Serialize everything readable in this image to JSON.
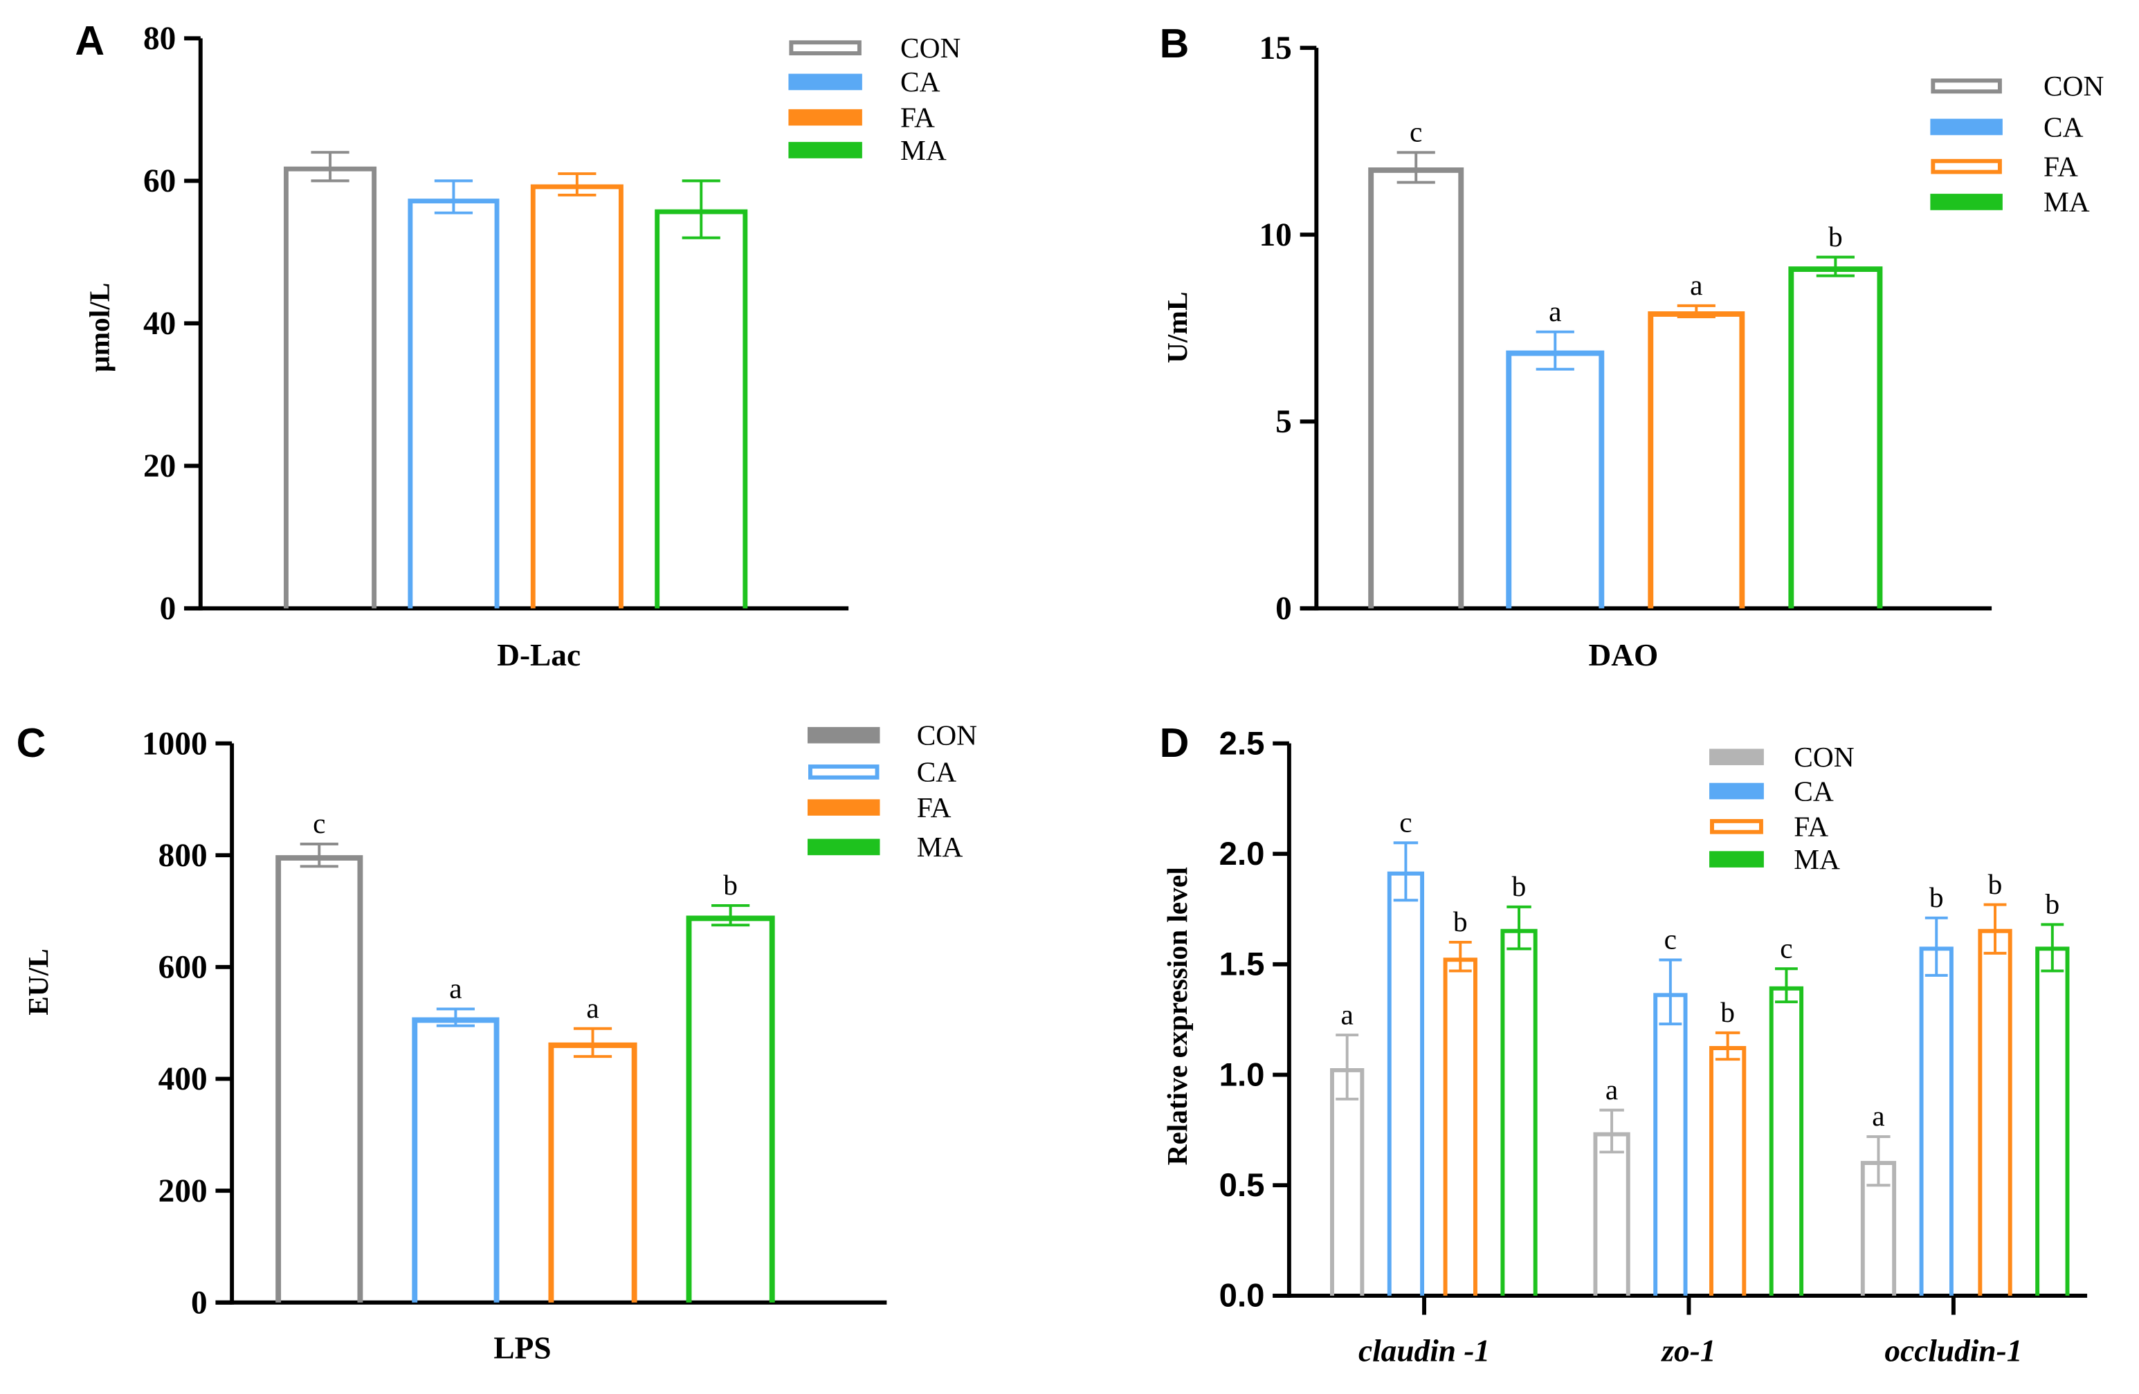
{
  "colors": {
    "CON": "#8c8c8c",
    "CON_light": "#b4b4b4",
    "CA": "#5aa9f5",
    "FA": "#ff8a1a",
    "MA": "#1ec21e",
    "axis": "#000000"
  },
  "chart_data": [
    {
      "panel": "A",
      "type": "bar",
      "title": "D-Lac",
      "xlabel": "D-Lac",
      "ylabel": "μmol/L",
      "ylim": [
        0,
        80
      ],
      "yticks": [
        "0",
        "20",
        "40",
        "60",
        "80"
      ],
      "ytick_values": [
        0,
        20,
        40,
        60,
        80
      ],
      "legend": [
        "CON",
        "CA",
        "FA",
        "MA"
      ],
      "legend_position": "top-right",
      "categories": [
        "D-Lac"
      ],
      "series": [
        {
          "name": "CON",
          "values": [
            62
          ],
          "err_low": [
            60
          ],
          "err_high": [
            64
          ],
          "letters": [
            ""
          ]
        },
        {
          "name": "CA",
          "values": [
            57.5
          ],
          "err_low": [
            55.5
          ],
          "err_high": [
            60
          ],
          "letters": [
            ""
          ]
        },
        {
          "name": "FA",
          "values": [
            59.5
          ],
          "err_low": [
            58
          ],
          "err_high": [
            61
          ],
          "letters": [
            ""
          ]
        },
        {
          "name": "MA",
          "values": [
            56
          ],
          "err_low": [
            52
          ],
          "err_high": [
            60
          ],
          "letters": [
            ""
          ]
        }
      ]
    },
    {
      "panel": "B",
      "type": "bar",
      "title": "DAO",
      "xlabel": "DAO",
      "ylabel": "U/mL",
      "ylim": [
        0,
        15
      ],
      "yticks": [
        "0",
        "5",
        "10",
        "15"
      ],
      "ytick_values": [
        0,
        5,
        10,
        15
      ],
      "legend": [
        "CON",
        "CA",
        "FA",
        "MA"
      ],
      "legend_position": "top-right",
      "categories": [
        "DAO"
      ],
      "series": [
        {
          "name": "CON",
          "values": [
            11.8
          ],
          "err_low": [
            11.4
          ],
          "err_high": [
            12.2
          ],
          "letters": [
            "c"
          ]
        },
        {
          "name": "CA",
          "values": [
            6.9
          ],
          "err_low": [
            6.4
          ],
          "err_high": [
            7.4
          ],
          "letters": [
            "a"
          ]
        },
        {
          "name": "FA",
          "values": [
            7.95
          ],
          "err_low": [
            7.8
          ],
          "err_high": [
            8.1
          ],
          "letters": [
            "a"
          ]
        },
        {
          "name": "MA",
          "values": [
            9.15
          ],
          "err_low": [
            8.9
          ],
          "err_high": [
            9.4
          ],
          "letters": [
            "b"
          ]
        }
      ]
    },
    {
      "panel": "C",
      "type": "bar",
      "title": "LPS",
      "xlabel": "LPS",
      "ylabel": "EU/L",
      "ylim": [
        0,
        1000
      ],
      "yticks": [
        "0",
        "200",
        "400",
        "600",
        "800",
        "1000"
      ],
      "ytick_values": [
        0,
        200,
        400,
        600,
        800,
        1000
      ],
      "legend": [
        "CON",
        "CA",
        "FA",
        "MA"
      ],
      "legend_position": "top-right",
      "categories": [
        "LPS"
      ],
      "series": [
        {
          "name": "CON",
          "values": [
            800
          ],
          "err_low": [
            780
          ],
          "err_high": [
            820
          ],
          "letters": [
            "c"
          ]
        },
        {
          "name": "CA",
          "values": [
            510
          ],
          "err_low": [
            495
          ],
          "err_high": [
            525
          ],
          "letters": [
            "a"
          ]
        },
        {
          "name": "FA",
          "values": [
            465
          ],
          "err_low": [
            440
          ],
          "err_high": [
            490
          ],
          "letters": [
            "a"
          ]
        },
        {
          "name": "MA",
          "values": [
            692
          ],
          "err_low": [
            675
          ],
          "err_high": [
            710
          ],
          "letters": [
            "b"
          ]
        }
      ]
    },
    {
      "panel": "D",
      "type": "bar",
      "title": "",
      "xlabel": "",
      "ylabel": "Relative expression level",
      "ylim": [
        0,
        2.5
      ],
      "yticks": [
        "0.0",
        "0.5",
        "1.0",
        "1.5",
        "2.0",
        "2.5"
      ],
      "ytick_values": [
        0,
        0.5,
        1.0,
        1.5,
        2.0,
        2.5
      ],
      "legend": [
        "CON",
        "CA",
        "FA",
        "MA"
      ],
      "legend_position": "top-center",
      "categories": [
        "claudin -1",
        "zo-1",
        "occludin-1"
      ],
      "series": [
        {
          "name": "CON",
          "values": [
            1.03,
            0.74,
            0.61
          ],
          "err_low": [
            0.89,
            0.65,
            0.5
          ],
          "err_high": [
            1.18,
            0.84,
            0.72
          ],
          "letters": [
            "a",
            "a",
            "a"
          ]
        },
        {
          "name": "CA",
          "values": [
            1.92,
            1.37,
            1.58
          ],
          "err_low": [
            1.79,
            1.23,
            1.45
          ],
          "err_high": [
            2.05,
            1.52,
            1.71
          ],
          "letters": [
            "c",
            "c",
            "b"
          ]
        },
        {
          "name": "FA",
          "values": [
            1.53,
            1.13,
            1.66
          ],
          "err_low": [
            1.47,
            1.07,
            1.55
          ],
          "err_high": [
            1.6,
            1.19,
            1.77
          ],
          "letters": [
            "b",
            "b",
            "b"
          ]
        },
        {
          "name": "MA",
          "values": [
            1.66,
            1.4,
            1.58
          ],
          "err_low": [
            1.57,
            1.33,
            1.47
          ],
          "err_high": [
            1.76,
            1.48,
            1.68
          ],
          "letters": [
            "b",
            "c",
            "b"
          ]
        }
      ]
    }
  ]
}
